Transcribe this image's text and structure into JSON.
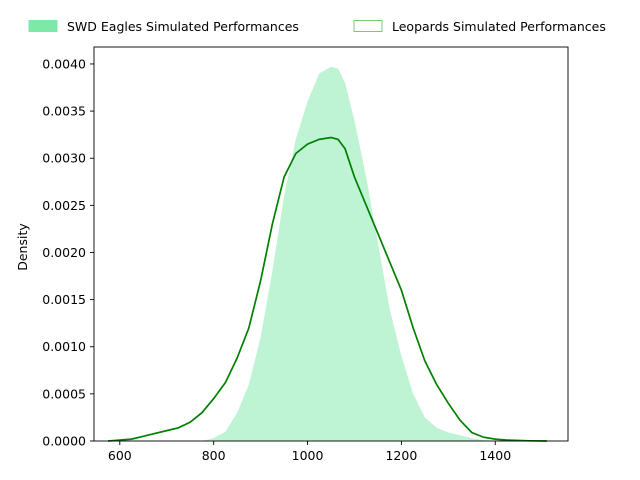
{
  "chart_data": {
    "type": "area",
    "title": "",
    "xlabel": "",
    "ylabel": "Density",
    "xlim": [
      545,
      1555
    ],
    "ylim": [
      0,
      0.00418
    ],
    "xticks": [
      600,
      800,
      1000,
      1200,
      1400
    ],
    "xtick_labels": [
      "600",
      "800",
      "1000",
      "1200",
      "1400"
    ],
    "yticks": [
      0,
      0.0005,
      0.001,
      0.0015,
      0.002,
      0.0025,
      0.003,
      0.0035,
      0.004
    ],
    "ytick_labels": [
      "0.0000",
      "0.0005",
      "0.0010",
      "0.0015",
      "0.0020",
      "0.0025",
      "0.0030",
      "0.0035",
      "0.0040"
    ],
    "grid": false,
    "legend_position": "top",
    "series": [
      {
        "name": "SWD Eagles Simulated Performances",
        "kind": "filled-kde",
        "fill_color": "#7ee8a8",
        "fill_opacity": 0.5,
        "x": [
          775,
          800,
          825,
          850,
          875,
          900,
          925,
          950,
          975,
          1000,
          1025,
          1050,
          1065,
          1080,
          1100,
          1125,
          1150,
          1175,
          1200,
          1225,
          1250,
          1275,
          1300,
          1325,
          1350,
          1375,
          1400
        ],
        "y": [
          0.0,
          3e-05,
          0.0001,
          0.0003,
          0.0006,
          0.0011,
          0.0018,
          0.0026,
          0.0032,
          0.0036,
          0.0039,
          0.00397,
          0.00395,
          0.0038,
          0.0034,
          0.0028,
          0.0021,
          0.0014,
          0.0009,
          0.0005,
          0.00025,
          0.00014,
          9e-05,
          6e-05,
          3e-05,
          1e-05,
          0.0
        ]
      },
      {
        "name": "Leopards Simulated Performances",
        "kind": "kde-line",
        "line_color": "#008000",
        "x": [
          575,
          600,
          625,
          650,
          675,
          700,
          725,
          750,
          775,
          800,
          825,
          850,
          875,
          900,
          925,
          950,
          975,
          1000,
          1025,
          1050,
          1065,
          1080,
          1100,
          1125,
          1150,
          1175,
          1200,
          1225,
          1250,
          1275,
          1300,
          1325,
          1350,
          1375,
          1400,
          1425,
          1450,
          1475,
          1510
        ],
        "y": [
          0.0,
          1e-05,
          2e-05,
          5e-05,
          8e-05,
          0.00011,
          0.00014,
          0.0002,
          0.0003,
          0.00045,
          0.00062,
          0.00088,
          0.0012,
          0.0017,
          0.0023,
          0.0028,
          0.00305,
          0.00315,
          0.0032,
          0.00322,
          0.0032,
          0.0031,
          0.0028,
          0.0025,
          0.0022,
          0.0019,
          0.0016,
          0.0012,
          0.00085,
          0.0006,
          0.0004,
          0.00022,
          9e-05,
          4e-05,
          2e-05,
          1e-05,
          5e-06,
          2e-06,
          0.0
        ]
      }
    ]
  }
}
